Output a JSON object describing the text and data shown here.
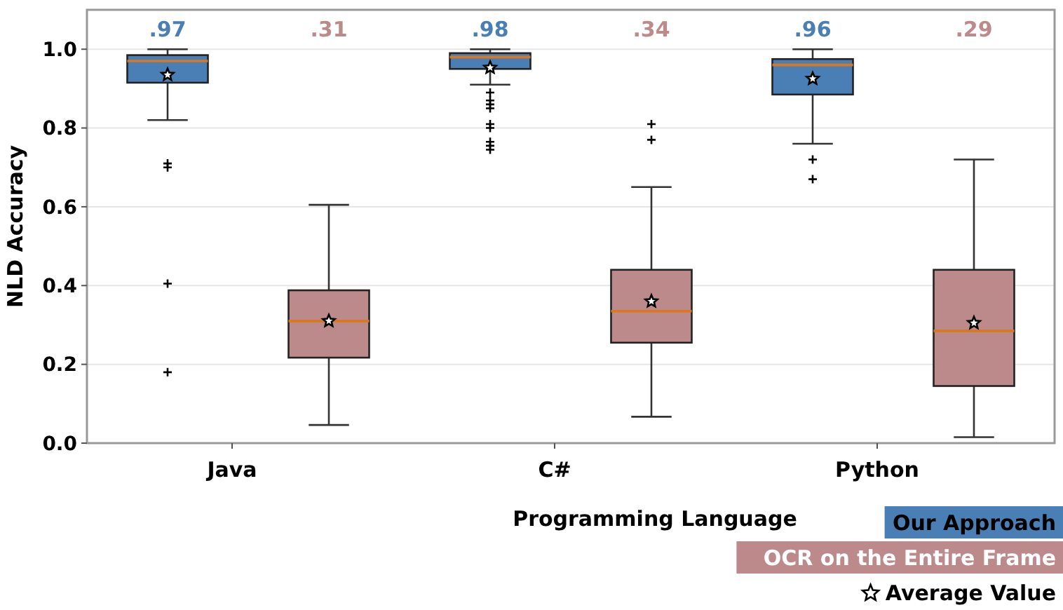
{
  "chart_data": {
    "type": "box",
    "xlabel": "Programming Language",
    "ylabel": "NLD Accuracy",
    "categories": [
      "Java",
      "C#",
      "Python"
    ],
    "ylim": [
      0,
      1.1
    ],
    "yticks": [
      {
        "value": 0,
        "label": "0.0"
      },
      {
        "value": 0.2,
        "label": "0.2"
      },
      {
        "value": 0.4,
        "label": "0.4"
      },
      {
        "value": 0.6,
        "label": "0.6"
      },
      {
        "value": 0.8,
        "label": "0.8"
      },
      {
        "value": 1,
        "label": "1.0"
      }
    ],
    "grid": "y",
    "legend": "bottom right",
    "marker": "star",
    "series": [
      {
        "name": "Our Approach",
        "color": "#4a7fb5",
        "value_labels": [
          ".97",
          ".98",
          ".96"
        ],
        "boxes": [
          {
            "low": 0.82,
            "q1": 0.915,
            "median": 0.97,
            "q3": 0.985,
            "high": 1.0,
            "mean": 0.935,
            "outliers": [
              0.71,
              0.7,
              0.405,
              0.18
            ]
          },
          {
            "low": 0.91,
            "q1": 0.95,
            "median": 0.98,
            "q3": 0.99,
            "high": 1.0,
            "mean": 0.953,
            "outliers": [
              0.89,
              0.87,
              0.86,
              0.85,
              0.81,
              0.8,
              0.765,
              0.755,
              0.745
            ]
          },
          {
            "low": 0.76,
            "q1": 0.885,
            "median": 0.96,
            "q3": 0.975,
            "high": 1.0,
            "mean": 0.925,
            "outliers": [
              0.72,
              0.67
            ]
          }
        ]
      },
      {
        "name": "OCR on the Entire Frame",
        "color": "#bc8a8a",
        "value_labels": [
          ".31",
          ".34",
          ".29"
        ],
        "boxes": [
          {
            "low": 0.046,
            "q1": 0.217,
            "median": 0.31,
            "q3": 0.388,
            "high": 0.605,
            "mean": 0.31
          },
          {
            "low": 0.067,
            "q1": 0.255,
            "median": 0.335,
            "q3": 0.44,
            "high": 0.65,
            "mean": 0.36,
            "outliers": [
              0.81,
              0.77
            ]
          },
          {
            "low": 0.015,
            "q1": 0.145,
            "median": 0.285,
            "q3": 0.44,
            "high": 0.72,
            "mean": 0.305
          }
        ]
      }
    ],
    "annotations": [
      "Average Value"
    ]
  }
}
